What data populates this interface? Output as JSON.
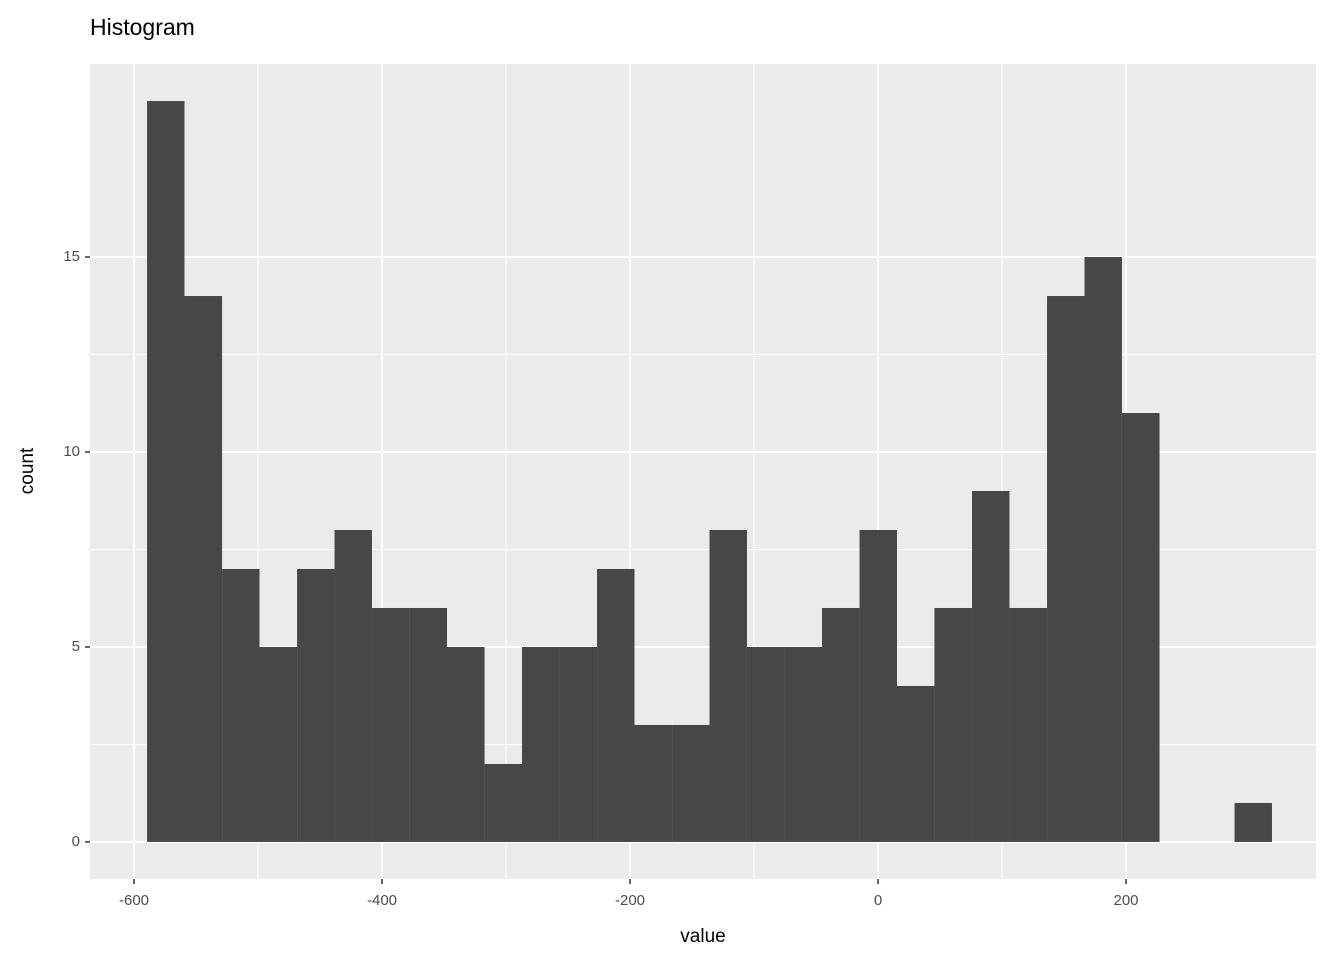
{
  "chart_data": {
    "type": "histogram",
    "title": "Histogram",
    "x_label": "value",
    "y_label": "count",
    "bins": [
      -589.5,
      -559.3,
      -529.0,
      -498.8,
      -468.5,
      -438.3,
      -408.1,
      -377.8,
      -347.6,
      -317.3,
      -287.1,
      -256.9,
      -226.6,
      -196.4,
      -166.1,
      -135.9,
      -105.7,
      -75.4,
      -45.2,
      -14.9,
      15.3,
      45.5,
      75.8,
      106.0,
      136.3,
      166.5,
      196.7,
      227.0,
      257.2,
      287.5,
      317.7
    ],
    "values": [
      19,
      14,
      7,
      5,
      7,
      8,
      6,
      6,
      5,
      2,
      5,
      5,
      7,
      3,
      3,
      8,
      5,
      5,
      6,
      8,
      4,
      6,
      9,
      6,
      14,
      15,
      11,
      0,
      0,
      1
    ],
    "color": "#474747",
    "xlim": [
      -635.5,
      353.2
    ],
    "ylim": [
      -0.95,
      19.95
    ],
    "xticks": [
      -600,
      -400,
      -200,
      0,
      200
    ],
    "yticks": [
      0,
      5,
      10,
      15
    ],
    "grid": true
  }
}
